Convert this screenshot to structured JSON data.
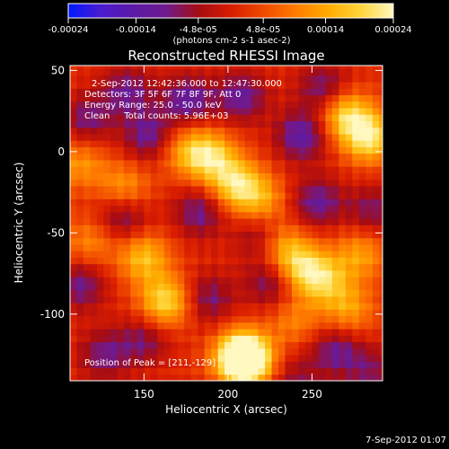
{
  "chart_data": {
    "type": "heatmap",
    "title": "Reconstructed RHESSI Image",
    "xlabel": "Heliocentric X (arcsec)",
    "ylabel": "Heliocentric Y (arcsec)",
    "xlim": [
      106,
      292
    ],
    "ylim": [
      -141,
      53
    ],
    "x_ticks": [
      150,
      200,
      250
    ],
    "y_ticks": [
      50,
      0,
      -50,
      -100
    ],
    "colorbar": {
      "unit_label": "(photons cm-2 s-1 asec-2)",
      "range": [
        -0.00024,
        0.00024
      ],
      "ticks": [
        -0.00024,
        -0.00014,
        -4.8e-05,
        4.8e-05,
        0.00014,
        0.00024
      ],
      "tick_labels": [
        "-0.00024",
        "-0.00014",
        "-4.8e-05",
        "4.8e-05",
        "0.00014",
        "0.00024"
      ],
      "colormap": [
        "#0018ff",
        "#4b1bd0",
        "#5b1aa6",
        "#6f1a8e",
        "#a50c14",
        "#d81c00",
        "#f04a00",
        "#ff7c00",
        "#ffab00",
        "#ffd63a",
        "#fff8c0"
      ]
    },
    "annotations": [
      "2-Sep-2012 12:42:36.000 to 12:47:30.000",
      "Detectors: 3F 5F 6F 7F 8F 9F, Att 0",
      "Energy Range: 25.0 - 50.0 keV",
      "Clean     Total counts: 5.96E+03"
    ],
    "peak_label": "Position of Peak = [211,-129]",
    "peak_position": [
      211,
      -129
    ],
    "timestamp": "7-Sep-2012 01:07",
    "sources": [
      {
        "x": 112,
        "y": -7,
        "value": 0.00011
      },
      {
        "x": 118,
        "y": -55,
        "value": 0.0001
      },
      {
        "x": 138,
        "y": -22,
        "value": 0.00012
      },
      {
        "x": 150,
        "y": -65,
        "value": 0.00016
      },
      {
        "x": 163,
        "y": -92,
        "value": 0.0002
      },
      {
        "x": 175,
        "y": 1,
        "value": 0.00012
      },
      {
        "x": 190,
        "y": -3,
        "value": 0.00018
      },
      {
        "x": 205,
        "y": -20,
        "value": 0.00019
      },
      {
        "x": 220,
        "y": -30,
        "value": 0.00012
      },
      {
        "x": 208,
        "y": -125,
        "value": 0.00022
      },
      {
        "x": 211,
        "y": -129,
        "value": 0.00024
      },
      {
        "x": 232,
        "y": -58,
        "value": 0.00014
      },
      {
        "x": 244,
        "y": -72,
        "value": 0.00017
      },
      {
        "x": 258,
        "y": -79,
        "value": 0.00014
      },
      {
        "x": 272,
        "y": -97,
        "value": 0.00012
      },
      {
        "x": 270,
        "y": 23,
        "value": 0.00019
      },
      {
        "x": 284,
        "y": 9,
        "value": 0.00021
      },
      {
        "x": 279,
        "y": -63,
        "value": 0.00012
      },
      {
        "x": 240,
        "y": -104,
        "value": 9e-05
      },
      {
        "x": 140,
        "y": 37,
        "value": -0.00012
      },
      {
        "x": 176,
        "y": 32,
        "value": -0.00014
      },
      {
        "x": 208,
        "y": 34,
        "value": -0.00013
      },
      {
        "x": 244,
        "y": 10,
        "value": -0.00015
      },
      {
        "x": 257,
        "y": 39,
        "value": -0.00012
      },
      {
        "x": 116,
        "y": 20,
        "value": -0.00011
      },
      {
        "x": 153,
        "y": 10,
        "value": -0.00013
      },
      {
        "x": 137,
        "y": -40,
        "value": -0.00012
      },
      {
        "x": 183,
        "y": -37,
        "value": -0.00012
      },
      {
        "x": 220,
        "y": -52,
        "value": -0.00011
      },
      {
        "x": 253,
        "y": -31,
        "value": -0.00013
      },
      {
        "x": 286,
        "y": -36,
        "value": -0.0001
      },
      {
        "x": 112,
        "y": -82,
        "value": -0.00012
      },
      {
        "x": 188,
        "y": -90,
        "value": -0.00011
      },
      {
        "x": 226,
        "y": -80,
        "value": -0.00012
      },
      {
        "x": 264,
        "y": -122,
        "value": -0.00012
      },
      {
        "x": 126,
        "y": -125,
        "value": -0.00011
      },
      {
        "x": 150,
        "y": -116,
        "value": -0.0001
      },
      {
        "x": 285,
        "y": -135,
        "value": -9e-05
      },
      {
        "x": 240,
        "y": -140,
        "value": -8e-05
      }
    ]
  }
}
